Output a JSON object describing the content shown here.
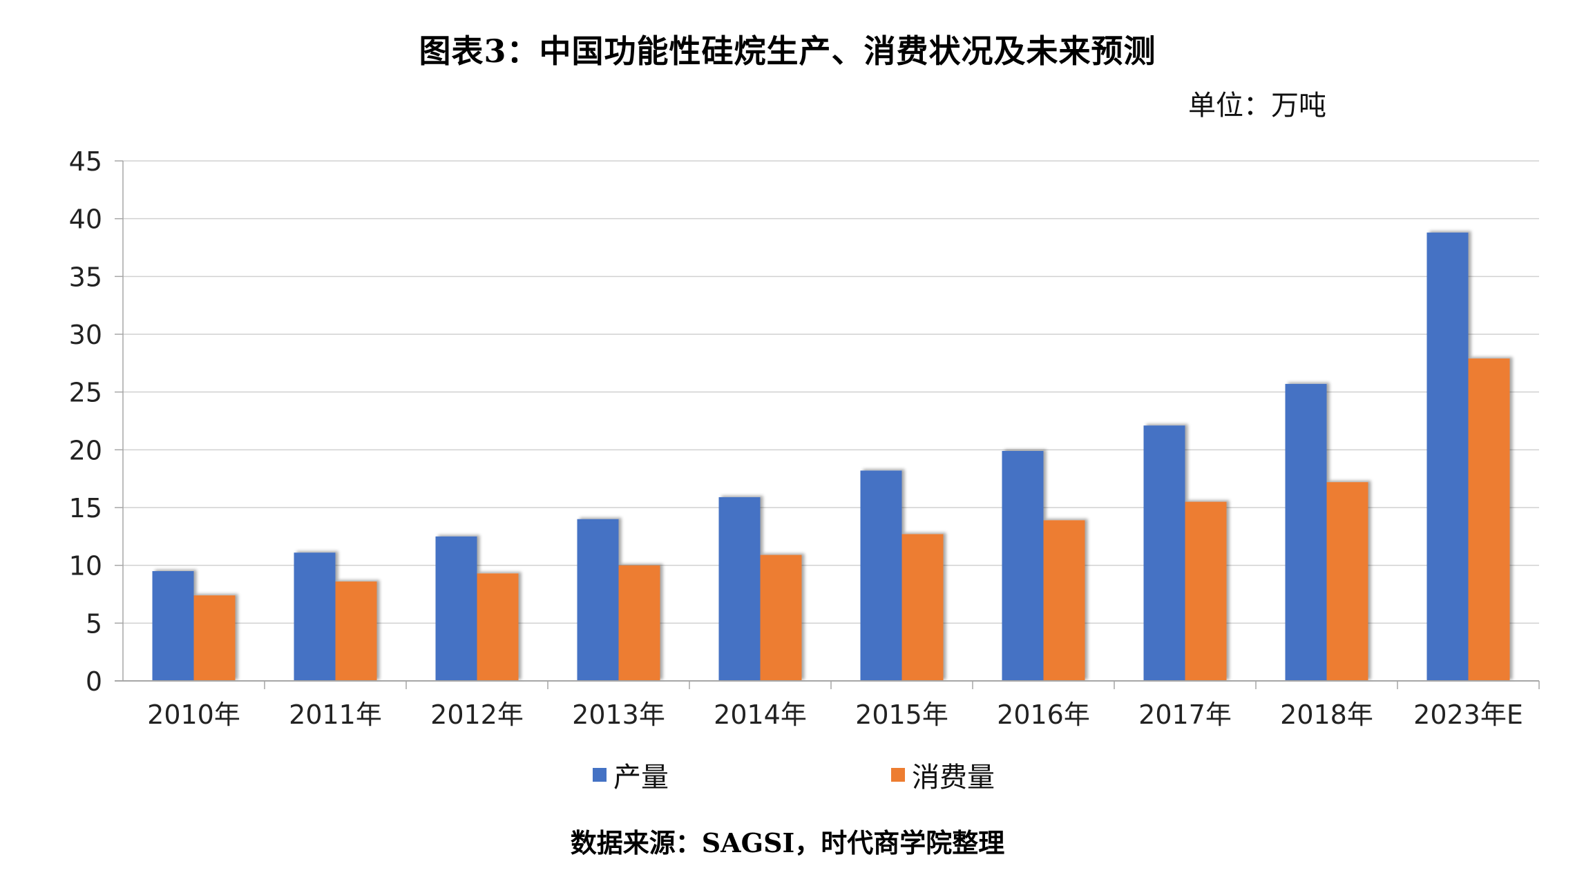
{
  "title": "图表3：中国功能性硅烷生产、消费状况及未来预测",
  "unit_label": "单位：万吨",
  "source": "数据来源：SAGSI，时代商学院整理",
  "colors": {
    "production": "#4472C4",
    "consumption": "#ED7D31",
    "grid": "#D0D0D0",
    "axis": "#A6A6A6"
  },
  "chart_data": {
    "type": "bar",
    "title": "图表3：中国功能性硅烷生产、消费状况及未来预测",
    "xlabel": "",
    "ylabel": "",
    "ylim": [
      0,
      45
    ],
    "ytick_step": 5,
    "grid": true,
    "legend_position": "bottom",
    "categories": [
      "2010年",
      "2011年",
      "2012年",
      "2013年",
      "2014年",
      "2015年",
      "2016年",
      "2017年",
      "2018年",
      "2023年E"
    ],
    "series": [
      {
        "name": "产量",
        "values": [
          9.5,
          11.1,
          12.5,
          14.0,
          15.9,
          18.2,
          19.9,
          22.1,
          25.7,
          38.8
        ]
      },
      {
        "name": "消费量",
        "values": [
          7.4,
          8.6,
          9.3,
          10.0,
          10.9,
          12.7,
          13.9,
          15.5,
          17.2,
          27.9
        ]
      }
    ]
  }
}
